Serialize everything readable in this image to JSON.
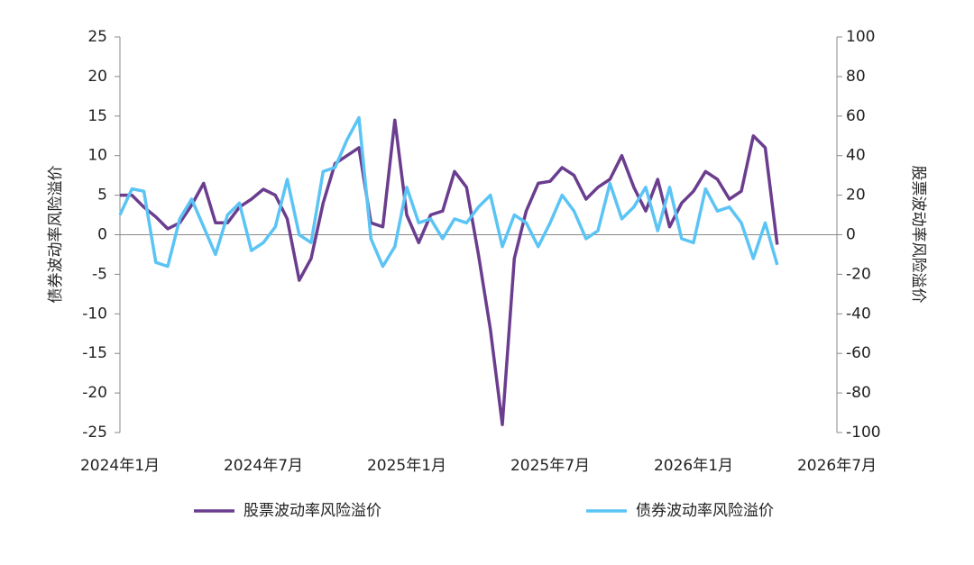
{
  "chart_data": {
    "type": "line",
    "y_label": "债券波动率风险溢价",
    "y2_label": "股票波动率风险溢价",
    "categories": [
      "2024年1月",
      null,
      null,
      null,
      null,
      null,
      null,
      null,
      null,
      null,
      null,
      null,
      "2024年7月",
      null,
      null,
      null,
      null,
      null,
      null,
      null,
      null,
      null,
      null,
      null,
      "2025年1月",
      null,
      null,
      null,
      null,
      null,
      null,
      null,
      null,
      null,
      null,
      null,
      "2025年7月",
      null,
      null,
      null,
      null,
      null,
      null,
      null,
      null,
      null,
      null,
      null,
      "2026年1月",
      null,
      null,
      null,
      null,
      null,
      null,
      null,
      null,
      null,
      null,
      null,
      "2026年7月"
    ],
    "ylim": [
      -25,
      25
    ],
    "yticks": [
      25,
      20,
      15,
      10,
      5,
      0,
      -5,
      -10,
      -15,
      -20,
      -25
    ],
    "y2lim": [
      -100,
      100
    ],
    "y2ticks": [
      100,
      80,
      60,
      40,
      20,
      0,
      -20,
      -40,
      -60,
      -80,
      -100
    ],
    "legend": "bottom",
    "series": [
      {
        "name": "股票波动率风险溢价",
        "color": "#6b3d8e",
        "axis": "y2",
        "values": [
          20,
          20,
          14,
          9,
          3,
          6,
          15,
          26,
          6,
          6,
          14,
          18,
          23,
          20,
          8,
          -23,
          -12,
          16,
          36,
          40,
          44,
          6,
          4,
          58,
          10,
          -4,
          10,
          12,
          32,
          24,
          -10,
          -48,
          -96,
          -12,
          12,
          26,
          27,
          34,
          30,
          18,
          24,
          28,
          40,
          24,
          12,
          28,
          4,
          16,
          22,
          32,
          28,
          18,
          22,
          50,
          44,
          -5,
          null,
          null,
          null,
          null,
          null
        ]
      },
      {
        "name": "债券波动率风险溢价",
        "color": "#5bc4f5",
        "axis": "y",
        "values": [
          2.5,
          5.8,
          5.5,
          -3.5,
          -4,
          2,
          4.5,
          1,
          -2.5,
          2.5,
          4,
          -2,
          -1,
          1,
          7,
          0,
          -1,
          8,
          8.5,
          12,
          14.8,
          -0.5,
          -4,
          -1.5,
          6,
          1.5,
          2,
          -0.5,
          2,
          1.5,
          3.5,
          5,
          -1.5,
          2.5,
          1.5,
          -1.5,
          1.5,
          5,
          3,
          -0.5,
          0.5,
          6.5,
          2,
          3.5,
          6,
          0.5,
          6,
          -0.5,
          -1,
          5.8,
          3,
          3.5,
          1.5,
          -3,
          1.5,
          -3.8,
          null,
          null,
          null,
          null,
          null
        ]
      }
    ]
  }
}
